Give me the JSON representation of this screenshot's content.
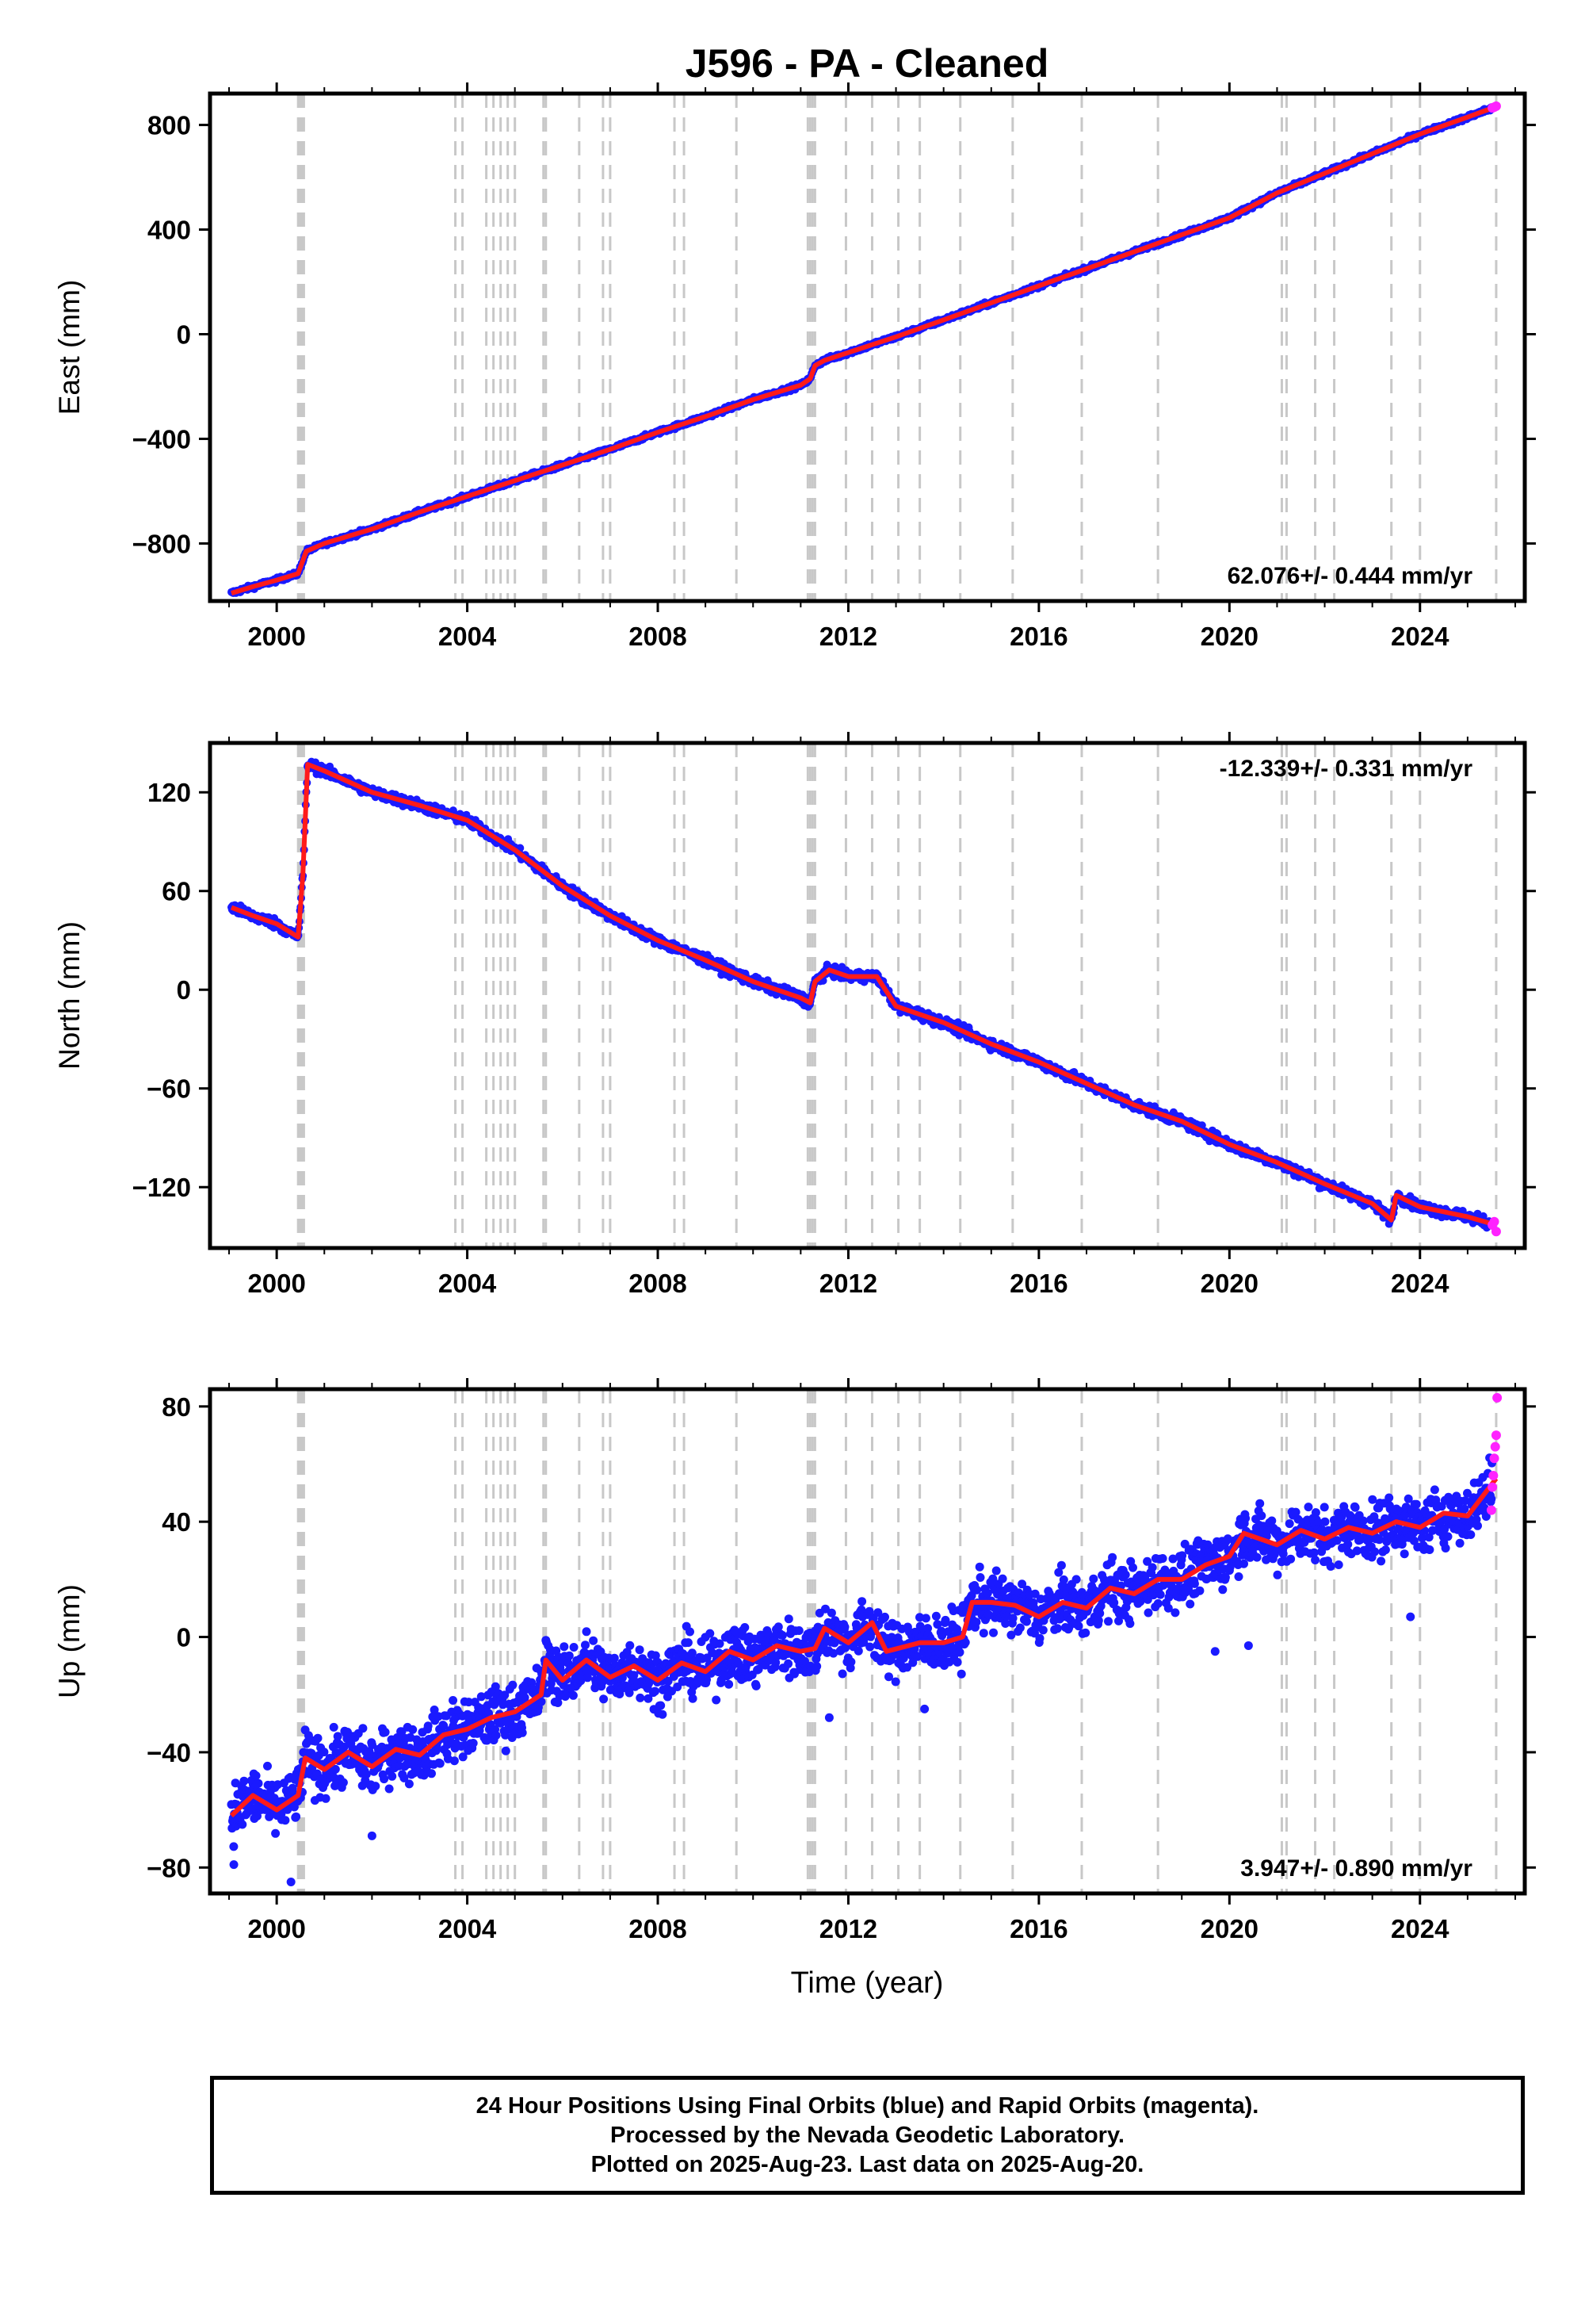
{
  "title": "J596  - PA - Cleaned",
  "xlabel": "Time (year)",
  "colors": {
    "final_orbits": "#1a1aff",
    "rapid_orbits": "#ff22ff",
    "model": "#ff1a1a",
    "event_lines": "#c8c8c8",
    "axes": "#000000"
  },
  "caption": {
    "line1": "24 Hour Positions Using Final Orbits (blue) and Rapid Orbits (magenta).",
    "line2": "Processed by the Nevada Geodetic Laboratory.",
    "line3": "Plotted on 2025-Aug-23. Last data on 2025-Aug-20."
  },
  "chart_data": [
    {
      "type": "scatter",
      "component": "East",
      "ylabel": "East (mm)",
      "rate_text": "62.076+/- 0.444 mm/yr",
      "rate_position": "bottom-right",
      "xlim": [
        1998.6,
        2026.2
      ],
      "ylim": [
        -1020,
        920
      ],
      "xticks": [
        2000,
        2004,
        2008,
        2012,
        2016,
        2020,
        2024
      ],
      "yticks": [
        -800,
        -400,
        0,
        400,
        800
      ],
      "series_model": {
        "x": [
          1999.05,
          1999.5,
          2000.0,
          2000.45,
          2000.62,
          2001.0,
          2002.0,
          2003.0,
          2004.0,
          2005.0,
          2006.0,
          2007.0,
          2008.0,
          2009.0,
          2010.0,
          2011.0,
          2011.2,
          2011.3,
          2011.5,
          2012.0,
          2013.0,
          2014.0,
          2015.0,
          2016.0,
          2017.0,
          2018.0,
          2019.0,
          2020.0,
          2021.0,
          2022.0,
          2023.0,
          2024.0,
          2025.0,
          2025.6
        ],
        "y": [
          -990,
          -965,
          -940,
          -915,
          -830,
          -800,
          -745,
          -680,
          -620,
          -560,
          -500,
          -440,
          -375,
          -315,
          -250,
          -195,
          -170,
          -120,
          -100,
          -70,
          -10,
          55,
          120,
          185,
          250,
          315,
          380,
          445,
          540,
          615,
          690,
          765,
          830,
          870
        ]
      },
      "rapid_points": {
        "x": [
          2025.52,
          2025.56,
          2025.6
        ],
        "y": [
          865,
          868,
          872
        ]
      },
      "event_lines": [
        2000.45,
        2000.48,
        2000.51,
        2000.54,
        2000.57,
        2003.75,
        2003.9,
        2004.4,
        2004.55,
        2004.7,
        2004.85,
        2005.0,
        2005.6,
        2005.65,
        2006.35,
        2006.85,
        2007.0,
        2008.35,
        2008.55,
        2009.65,
        2011.15,
        2011.2,
        2011.25,
        2011.3,
        2011.95,
        2012.5,
        2013.05,
        2013.5,
        2014.35,
        2015.45,
        2016.9,
        2018.5,
        2021.1,
        2021.2,
        2021.8,
        2022.2,
        2023.4,
        2024.0,
        2025.6
      ]
    },
    {
      "type": "scatter",
      "component": "North",
      "ylabel": "North (mm)",
      "rate_text": "-12.339+/- 0.331 mm/yr",
      "rate_position": "top-right",
      "xlim": [
        1998.6,
        2026.2
      ],
      "ylim": [
        -157,
        150
      ],
      "xticks": [
        2000,
        2004,
        2008,
        2012,
        2016,
        2020,
        2024
      ],
      "yticks": [
        -120,
        -60,
        0,
        60,
        120
      ],
      "series_model": {
        "x": [
          1999.05,
          1999.5,
          2000.0,
          2000.45,
          2000.55,
          2000.65,
          2001.0,
          2002.0,
          2003.0,
          2004.0,
          2005.0,
          2006.0,
          2007.0,
          2008.0,
          2009.0,
          2010.0,
          2011.0,
          2011.2,
          2011.3,
          2011.6,
          2012.0,
          2012.6,
          2013.0,
          2014.0,
          2015.0,
          2016.0,
          2017.0,
          2018.0,
          2019.0,
          2020.0,
          2021.0,
          2022.0,
          2023.0,
          2023.4,
          2023.5,
          2024.0,
          2025.0,
          2025.6
        ],
        "y": [
          50,
          45,
          40,
          32,
          70,
          137,
          133,
          120,
          112,
          103,
          85,
          63,
          45,
          30,
          18,
          5,
          -5,
          -8,
          5,
          12,
          8,
          8,
          -10,
          -20,
          -33,
          -44,
          -57,
          -70,
          -80,
          -94,
          -105,
          -118,
          -130,
          -140,
          -125,
          -132,
          -138,
          -143
        ]
      },
      "rapid_points": {
        "x": [
          2025.52,
          2025.56,
          2025.6
        ],
        "y": [
          -143,
          -141,
          -147
        ]
      },
      "event_lines": [
        2000.45,
        2000.48,
        2000.51,
        2000.54,
        2000.57,
        2003.75,
        2003.9,
        2004.4,
        2004.55,
        2004.7,
        2004.85,
        2005.0,
        2005.6,
        2005.65,
        2006.35,
        2006.85,
        2007.0,
        2008.35,
        2008.55,
        2009.65,
        2011.15,
        2011.2,
        2011.25,
        2011.3,
        2011.95,
        2012.5,
        2013.05,
        2013.5,
        2014.35,
        2015.45,
        2016.9,
        2018.5,
        2021.1,
        2021.2,
        2021.8,
        2022.2,
        2023.4,
        2024.0,
        2025.6
      ]
    },
    {
      "type": "scatter",
      "component": "Up",
      "ylabel": "Up (mm)",
      "rate_text": "3.947+/- 0.890 mm/yr",
      "rate_position": "bottom-right",
      "xlim": [
        1998.6,
        2026.2
      ],
      "ylim": [
        -89,
        86
      ],
      "xticks": [
        2000,
        2004,
        2008,
        2012,
        2016,
        2020,
        2024
      ],
      "yticks": [
        -80,
        -40,
        0,
        40,
        80
      ],
      "series_model": {
        "x": [
          1999.05,
          1999.5,
          2000.0,
          2000.45,
          2000.6,
          2001.0,
          2001.5,
          2002.0,
          2002.5,
          2003.0,
          2003.5,
          2004.0,
          2004.5,
          2005.0,
          2005.55,
          2005.65,
          2006.0,
          2006.5,
          2007.0,
          2007.5,
          2008.0,
          2008.5,
          2009.0,
          2009.5,
          2010.0,
          2010.5,
          2011.0,
          2011.3,
          2011.5,
          2012.0,
          2012.5,
          2012.8,
          2013.5,
          2014.0,
          2014.4,
          2014.6,
          2015.0,
          2015.5,
          2016.0,
          2016.5,
          2017.0,
          2017.5,
          2018.0,
          2018.5,
          2019.0,
          2019.5,
          2020.0,
          2020.3,
          2021.0,
          2021.5,
          2022.0,
          2022.5,
          2023.0,
          2023.5,
          2024.0,
          2024.5,
          2025.0,
          2025.6
        ],
        "y": [
          -62,
          -55,
          -60,
          -55,
          -42,
          -46,
          -40,
          -45,
          -39,
          -41,
          -34,
          -32,
          -28,
          -26,
          -20,
          -8,
          -15,
          -8,
          -14,
          -10,
          -15,
          -9,
          -12,
          -5,
          -8,
          -3,
          -5,
          -4,
          3,
          -2,
          5,
          -5,
          -2,
          -2,
          0,
          12,
          12,
          11,
          7,
          12,
          10,
          17,
          15,
          20,
          20,
          25,
          28,
          36,
          32,
          37,
          34,
          38,
          36,
          40,
          38,
          43,
          42,
          55
        ]
      },
      "rapid_points": {
        "x": [
          2025.5,
          2025.52,
          2025.54,
          2025.56,
          2025.58,
          2025.6,
          2025.62
        ],
        "y": [
          44,
          52,
          56,
          62,
          66,
          70,
          83
        ]
      },
      "event_lines": [
        2000.45,
        2000.48,
        2000.51,
        2000.54,
        2000.57,
        2003.75,
        2003.9,
        2004.4,
        2004.55,
        2004.7,
        2004.85,
        2005.0,
        2005.6,
        2005.65,
        2006.35,
        2006.85,
        2007.0,
        2008.35,
        2008.55,
        2009.65,
        2011.15,
        2011.2,
        2011.25,
        2011.3,
        2011.95,
        2012.5,
        2013.05,
        2013.5,
        2014.35,
        2015.45,
        2016.9,
        2018.5,
        2021.1,
        2021.2,
        2021.8,
        2022.2,
        2023.4,
        2024.0,
        2025.6
      ]
    }
  ]
}
